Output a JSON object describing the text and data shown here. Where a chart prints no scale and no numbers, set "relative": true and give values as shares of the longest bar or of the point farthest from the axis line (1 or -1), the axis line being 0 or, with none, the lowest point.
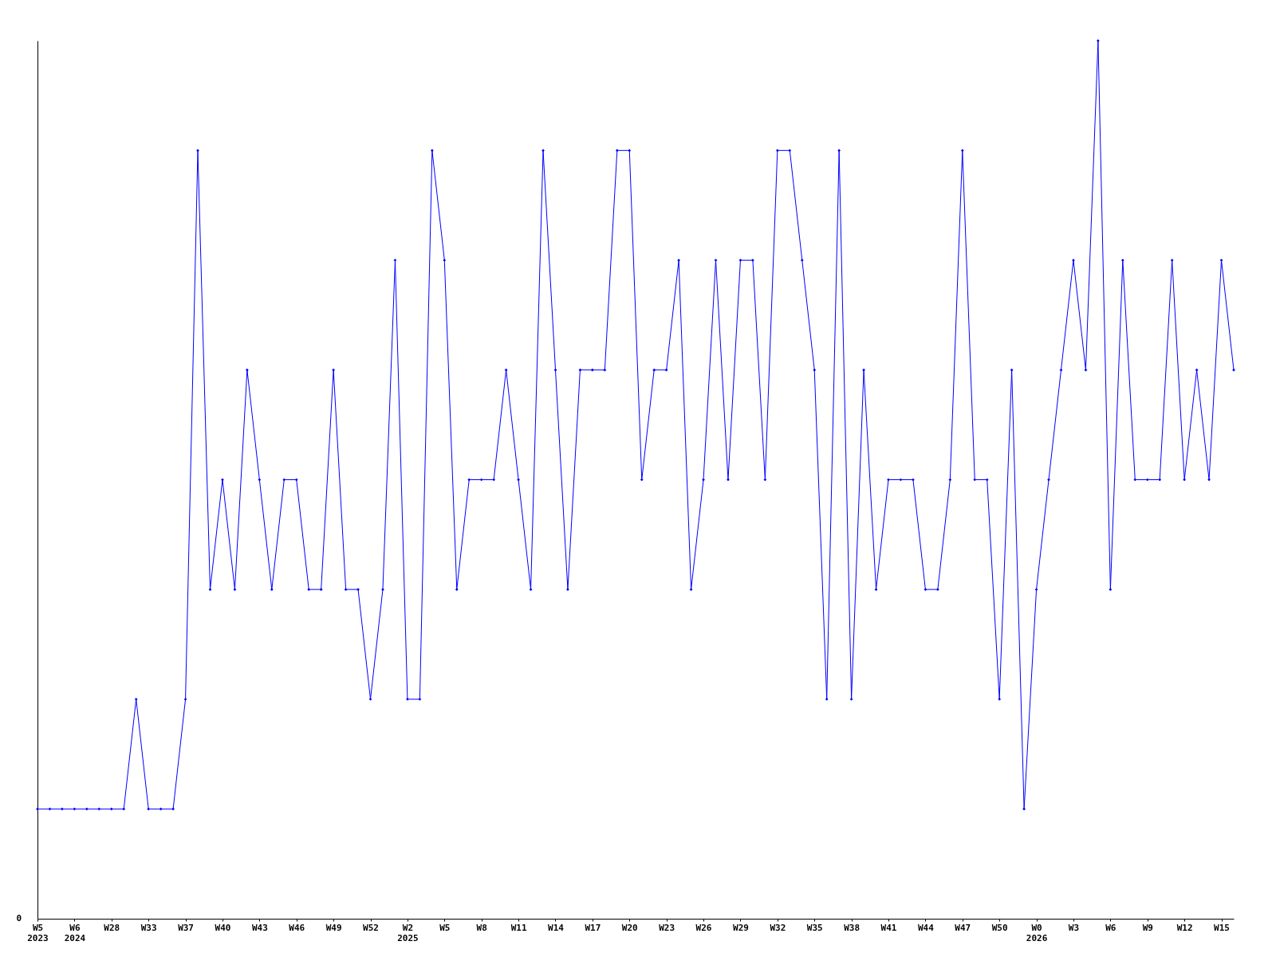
{
  "chart_data": {
    "type": "line",
    "relative": true,
    "annotations": [
      "0"
    ],
    "marker": "diamond",
    "line_style": "solid",
    "grid": false,
    "categories": [
      "W5\n2023",
      null,
      null,
      "W6\n2024",
      null,
      null,
      "W28",
      null,
      null,
      "W33",
      null,
      null,
      "W37",
      null,
      null,
      "W40",
      null,
      null,
      "W43",
      null,
      null,
      "W46",
      null,
      null,
      "W49",
      null,
      null,
      "W52",
      null,
      null,
      "W2\n2025",
      null,
      null,
      "W5",
      null,
      null,
      "W8",
      null,
      null,
      "W11",
      null,
      null,
      "W14",
      null,
      null,
      "W17",
      null,
      null,
      "W20",
      null,
      null,
      "W23",
      null,
      null,
      "W26",
      null,
      null,
      "W29",
      null,
      null,
      "W32",
      null,
      null,
      "W35",
      null,
      null,
      "W38",
      null,
      null,
      "W41",
      null,
      null,
      "W44",
      null,
      null,
      "W47",
      null,
      null,
      "W50",
      null,
      null,
      "W0\n2026",
      null,
      null,
      "W3",
      null,
      null,
      "W6",
      null,
      null,
      "W9",
      null,
      null,
      "W12",
      null,
      null,
      "W15",
      null
    ],
    "series": [
      {
        "color": "#0000ff",
        "values": [
          0.125,
          0.125,
          0.125,
          0.125,
          0.125,
          0.125,
          0.125,
          0.125,
          0.25,
          0.125,
          0.125,
          0.125,
          0.25,
          0.875,
          0.375,
          0.5,
          0.375,
          0.625,
          0.5,
          0.375,
          0.5,
          0.5,
          0.375,
          0.375,
          0.625,
          0.375,
          0.375,
          0.25,
          0.375,
          0.75,
          0.25,
          0.25,
          0.875,
          0.75,
          0.375,
          0.5,
          0.5,
          0.5,
          0.625,
          0.5,
          0.375,
          0.875,
          0.625,
          0.375,
          0.625,
          0.625,
          0.625,
          0.875,
          0.875,
          0.5,
          0.625,
          0.625,
          0.75,
          0.375,
          0.5,
          0.75,
          0.5,
          0.75,
          0.75,
          0.5,
          0.875,
          0.875,
          0.75,
          0.625,
          0.25,
          0.875,
          0.25,
          0.625,
          0.375,
          0.5,
          0.5,
          0.5,
          0.375,
          0.375,
          0.5,
          0.875,
          0.5,
          0.5,
          0.25,
          0.625,
          0.125,
          0.375,
          0.5,
          0.625,
          0.75,
          0.625,
          1,
          0.375,
          0.75,
          0.5,
          0.5,
          0.5,
          0.75,
          0.5,
          0.625,
          0.5,
          0.75,
          0.625
        ]
      }
    ]
  }
}
